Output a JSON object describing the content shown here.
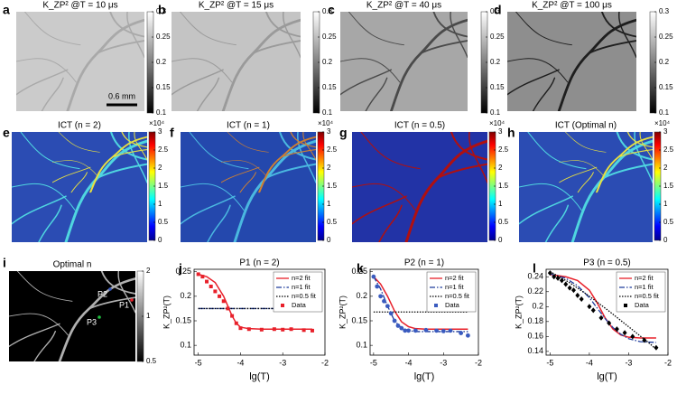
{
  "image_panels": [
    {
      "label": "a",
      "title": "K_ZP² @T = 10 μs",
      "cbar": "gray",
      "cbar_lim": [
        0.1,
        0.3
      ],
      "cbar_ticks": [
        0.3,
        0.25,
        0.2,
        0.15,
        0.1
      ]
    },
    {
      "label": "b",
      "title": "K_ZP² @T = 15 μs",
      "cbar": "gray",
      "cbar_lim": [
        0.1,
        0.3
      ],
      "cbar_ticks": [
        0.3,
        0.25,
        0.2,
        0.15,
        0.1
      ]
    },
    {
      "label": "c",
      "title": "K_ZP² @T = 40 μs",
      "cbar": "gray",
      "cbar_lim": [
        0.1,
        0.3
      ],
      "cbar_ticks": [
        0.3,
        0.25,
        0.2,
        0.15,
        0.1
      ]
    },
    {
      "label": "d",
      "title": "K_ZP² @T = 100 μs",
      "cbar": "gray",
      "cbar_lim": [
        0.1,
        0.3
      ],
      "cbar_ticks": [
        0.3,
        0.25,
        0.2,
        0.15,
        0.1
      ]
    },
    {
      "label": "e",
      "title": "ICT (n = 2)",
      "cbar": "jet",
      "cbar_exponent": "×10⁴",
      "cbar_lim": [
        0,
        3
      ],
      "cbar_ticks": [
        3,
        2.5,
        2,
        1.5,
        1,
        0.5,
        0
      ]
    },
    {
      "label": "f",
      "title": "ICT (n = 1)",
      "cbar": "jet",
      "cbar_exponent": "×10⁴",
      "cbar_lim": [
        0,
        3
      ],
      "cbar_ticks": [
        3,
        2.5,
        2,
        1.5,
        1,
        0.5,
        0
      ]
    },
    {
      "label": "g",
      "title": "ICT (n = 0.5)",
      "cbar": "jet",
      "cbar_exponent": "×10⁴",
      "cbar_lim": [
        0,
        3
      ],
      "cbar_ticks": [
        3,
        2.5,
        2,
        1.5,
        1,
        0.5,
        0
      ]
    },
    {
      "label": "h",
      "title": "ICT (Optimal n)",
      "cbar": "jet",
      "cbar_exponent": "×10⁴",
      "cbar_lim": [
        0,
        3
      ],
      "cbar_ticks": [
        3,
        2.5,
        2,
        1.5,
        1,
        0.5,
        0
      ]
    },
    {
      "label": "i",
      "title": "Optimal n",
      "cbar": "gray",
      "cbar_log": true,
      "cbar_lim": [
        0.5,
        2
      ],
      "cbar_ticks": [
        2,
        1,
        0.5
      ]
    }
  ],
  "scale_bar": "0.6 mm",
  "point_labels": [
    "P1",
    "P2",
    "P3"
  ],
  "chart_data": [
    {
      "type": "line",
      "label": "j",
      "title": "P1 (n = 2)",
      "x_label": "lg(T)",
      "y_label": "K_ZP²(T)",
      "xlim": [
        -5.1,
        -2
      ],
      "xticks": [
        -5,
        -4,
        -3,
        -2
      ],
      "ylim": [
        0.08,
        0.255
      ],
      "yticks": [
        0.25,
        0.2,
        0.15,
        0.1
      ],
      "legend": "upper right",
      "series": [
        {
          "name": "n=2 fit",
          "color": "#e8202a",
          "dash": "solid",
          "x": [
            -5,
            -4.8,
            -4.6,
            -4.4,
            -4.3,
            -4.2,
            -4.1,
            -4,
            -3.8,
            -3.5,
            -3,
            -2.5,
            -2.3
          ],
          "values": [
            0.245,
            0.24,
            0.228,
            0.2,
            0.18,
            0.16,
            0.145,
            0.137,
            0.134,
            0.133,
            0.133,
            0.133,
            0.133
          ]
        },
        {
          "name": "n=1 fit",
          "color": "#1f3c9c",
          "dash": "dashdot",
          "x": [
            -5,
            -2.3
          ],
          "values": [
            0.175,
            0.175
          ]
        },
        {
          "name": "n=0.5 fit",
          "color": "#000000",
          "dash": "dotted",
          "x": [
            -5,
            -2.3
          ],
          "values": [
            0.175,
            0.175
          ]
        },
        {
          "name": "Data",
          "color": "#e8202a",
          "marker": "square",
          "x": [
            -5,
            -4.9,
            -4.8,
            -4.7,
            -4.6,
            -4.5,
            -4.4,
            -4.3,
            -4.2,
            -4.1,
            -4,
            -3.8,
            -3.5,
            -3.2,
            -3,
            -2.8,
            -2.5,
            -2.3
          ],
          "values": [
            0.245,
            0.24,
            0.23,
            0.22,
            0.21,
            0.2,
            0.19,
            0.175,
            0.16,
            0.145,
            0.135,
            0.133,
            0.132,
            0.133,
            0.132,
            0.133,
            0.131,
            0.13
          ]
        }
      ]
    },
    {
      "type": "line",
      "label": "k",
      "title": "P2 (n = 1)",
      "x_label": "lg(T)",
      "y_label": "K_ZP²(T)",
      "xlim": [
        -5.1,
        -2
      ],
      "xticks": [
        -5,
        -4,
        -3,
        -2
      ],
      "ylim": [
        0.08,
        0.255
      ],
      "yticks": [
        0.25,
        0.2,
        0.15,
        0.1
      ],
      "legend": "upper right",
      "series": [
        {
          "name": "n=2 fit",
          "color": "#e8202a",
          "dash": "solid",
          "x": [
            -5,
            -4.8,
            -4.6,
            -4.4,
            -4.2,
            -4,
            -3.8,
            -3.5,
            -3,
            -2.3
          ],
          "values": [
            0.24,
            0.225,
            0.2,
            0.17,
            0.148,
            0.138,
            0.134,
            0.133,
            0.133,
            0.133
          ]
        },
        {
          "name": "n=1 fit",
          "color": "#1f3c9c",
          "dash": "dashdot",
          "x": [
            -5,
            -4.8,
            -4.6,
            -4.4,
            -4.2,
            -4,
            -3.8,
            -3.5,
            -3,
            -2.3
          ],
          "values": [
            0.24,
            0.215,
            0.18,
            0.15,
            0.135,
            0.13,
            0.128,
            0.128,
            0.128,
            0.128
          ]
        },
        {
          "name": "n=0.5 fit",
          "color": "#000000",
          "dash": "dotted",
          "x": [
            -5,
            -2.3
          ],
          "values": [
            0.168,
            0.168
          ]
        },
        {
          "name": "Data",
          "color": "#3a5bbf",
          "marker": "circle",
          "x": [
            -5,
            -4.9,
            -4.8,
            -4.7,
            -4.6,
            -4.5,
            -4.4,
            -4.3,
            -4.2,
            -4.1,
            -4,
            -3.8,
            -3.5,
            -3.2,
            -3,
            -2.8,
            -2.5,
            -2.3
          ],
          "values": [
            0.24,
            0.22,
            0.2,
            0.19,
            0.18,
            0.165,
            0.15,
            0.14,
            0.135,
            0.13,
            0.13,
            0.13,
            0.131,
            0.13,
            0.129,
            0.13,
            0.125,
            0.12
          ]
        }
      ]
    },
    {
      "type": "line",
      "label": "l",
      "title": "P3 (n = 0.5)",
      "x_label": "lg(T)",
      "y_label": "K_ZP²(T)",
      "xlim": [
        -5.1,
        -2
      ],
      "xticks": [
        -5,
        -4,
        -3,
        -2
      ],
      "ylim": [
        0.135,
        0.25
      ],
      "yticks": [
        0.24,
        0.22,
        0.2,
        0.18,
        0.16,
        0.14
      ],
      "legend": "upper right",
      "series": [
        {
          "name": "n=2 fit",
          "color": "#e8202a",
          "dash": "solid",
          "x": [
            -5,
            -4.6,
            -4.3,
            -4,
            -3.8,
            -3.6,
            -3.4,
            -3.2,
            -3,
            -2.7,
            -2.3
          ],
          "values": [
            0.243,
            0.24,
            0.235,
            0.222,
            0.205,
            0.185,
            0.17,
            0.162,
            0.159,
            0.158,
            0.158
          ]
        },
        {
          "name": "n=1 fit",
          "color": "#1f3c9c",
          "dash": "dashdot",
          "x": [
            -5,
            -4.6,
            -4.3,
            -4,
            -3.8,
            -3.6,
            -3.4,
            -3.2,
            -3,
            -2.7,
            -2.3
          ],
          "values": [
            0.244,
            0.238,
            0.228,
            0.212,
            0.198,
            0.184,
            0.172,
            0.163,
            0.157,
            0.153,
            0.152
          ]
        },
        {
          "name": "n=0.5 fit",
          "color": "#000000",
          "dash": "dotted",
          "x": [
            -5,
            -4.5,
            -4,
            -3.5,
            -3,
            -2.5,
            -2.3
          ],
          "values": [
            0.247,
            0.232,
            0.214,
            0.194,
            0.173,
            0.152,
            0.143
          ]
        },
        {
          "name": "Data",
          "color": "#000000",
          "marker": "diamond",
          "x": [
            -5,
            -4.9,
            -4.8,
            -4.7,
            -4.6,
            -4.5,
            -4.4,
            -4.3,
            -4.2,
            -4,
            -3.9,
            -3.7,
            -3.5,
            -3.3,
            -3.1,
            -2.9,
            -2.6,
            -2.3
          ],
          "values": [
            0.245,
            0.24,
            0.238,
            0.235,
            0.23,
            0.225,
            0.222,
            0.215,
            0.21,
            0.2,
            0.195,
            0.185,
            0.178,
            0.17,
            0.165,
            0.16,
            0.155,
            0.145
          ]
        }
      ]
    }
  ]
}
